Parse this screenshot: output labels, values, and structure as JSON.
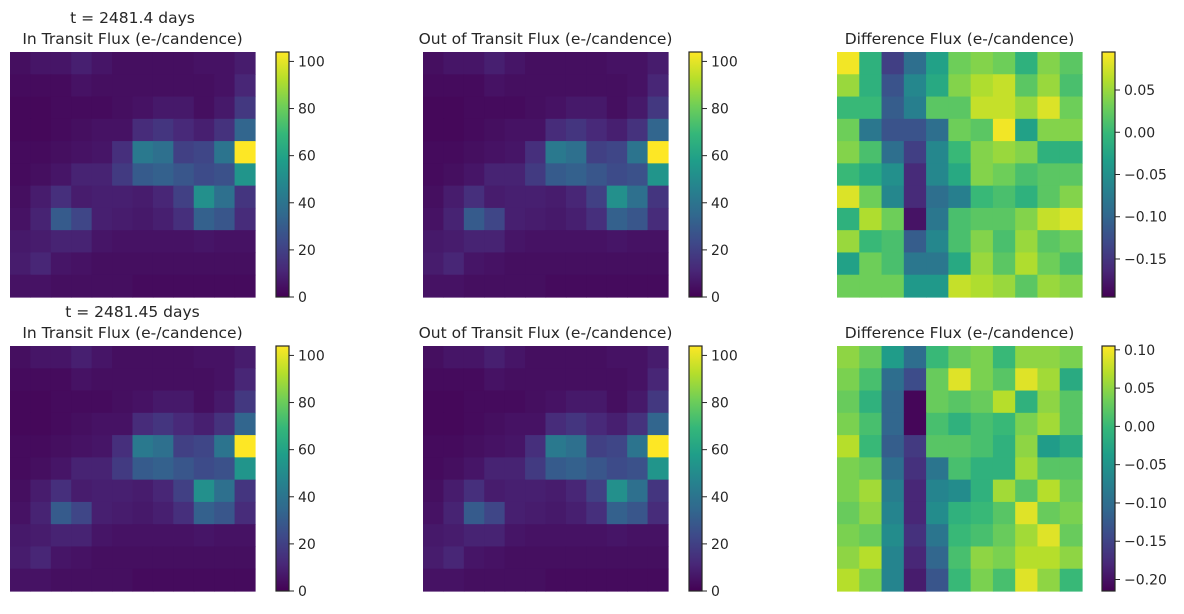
{
  "figure": {
    "colormap": "viridis",
    "colormap_stops": [
      "#440154",
      "#482878",
      "#3e4989",
      "#31688e",
      "#26828e",
      "#1f9e89",
      "#35b779",
      "#6ece58",
      "#b5de2b",
      "#fde725"
    ]
  },
  "chart_data": [
    {
      "id": "row1-in",
      "type": "heatmap",
      "title_lines": [
        "t = 2481.4 days",
        "In Transit Flux (e-/candence)"
      ],
      "vmin": 0,
      "vmax": 104,
      "colorbar_ticks": [
        0,
        20,
        40,
        60,
        80,
        100
      ],
      "colorbar_tick_labels": [
        "0",
        "20",
        "40",
        "60",
        "80",
        "100"
      ],
      "grid": [
        [
          4,
          6,
          6,
          9,
          6,
          4,
          4,
          4,
          4,
          5,
          5,
          8
        ],
        [
          3,
          3,
          3,
          5,
          4,
          4,
          4,
          4,
          4,
          4,
          5,
          11
        ],
        [
          2,
          2,
          3,
          3,
          3,
          4,
          5,
          7,
          7,
          4,
          7,
          17
        ],
        [
          2,
          2,
          3,
          4,
          5,
          5,
          13,
          16,
          12,
          9,
          15,
          34
        ],
        [
          3,
          3,
          4,
          5,
          6,
          14,
          42,
          38,
          20,
          22,
          40,
          104
        ],
        [
          3,
          4,
          6,
          10,
          10,
          18,
          30,
          32,
          28,
          24,
          26,
          54
        ],
        [
          4,
          8,
          14,
          8,
          9,
          9,
          8,
          11,
          20,
          52,
          38,
          16
        ],
        [
          5,
          10,
          30,
          22,
          9,
          8,
          7,
          9,
          14,
          32,
          28,
          13
        ],
        [
          7,
          8,
          10,
          10,
          6,
          5,
          5,
          5,
          5,
          6,
          5,
          5
        ],
        [
          8,
          11,
          6,
          5,
          4,
          4,
          4,
          4,
          4,
          4,
          4,
          4
        ],
        [
          5,
          5,
          4,
          4,
          4,
          4,
          3,
          3,
          3,
          3,
          3,
          3
        ]
      ]
    },
    {
      "id": "row1-out",
      "type": "heatmap",
      "title_lines": [
        "Out of Transit Flux (e-/candence)"
      ],
      "vmin": 0,
      "vmax": 104,
      "colorbar_ticks": [
        0,
        20,
        40,
        60,
        80,
        100
      ],
      "colorbar_tick_labels": [
        "0",
        "20",
        "40",
        "60",
        "80",
        "100"
      ],
      "grid": [
        [
          4,
          6,
          6,
          9,
          6,
          4,
          4,
          4,
          4,
          5,
          5,
          8
        ],
        [
          3,
          3,
          3,
          5,
          4,
          4,
          4,
          4,
          4,
          4,
          5,
          11
        ],
        [
          2,
          2,
          3,
          3,
          3,
          4,
          5,
          7,
          7,
          4,
          7,
          17
        ],
        [
          2,
          2,
          3,
          4,
          5,
          5,
          13,
          16,
          12,
          9,
          15,
          34
        ],
        [
          3,
          3,
          4,
          5,
          6,
          14,
          42,
          38,
          20,
          22,
          40,
          104
        ],
        [
          3,
          4,
          6,
          10,
          10,
          18,
          30,
          32,
          28,
          24,
          26,
          54
        ],
        [
          4,
          8,
          14,
          8,
          9,
          9,
          8,
          11,
          20,
          52,
          38,
          16
        ],
        [
          5,
          10,
          30,
          22,
          9,
          8,
          7,
          9,
          14,
          32,
          28,
          13
        ],
        [
          7,
          8,
          10,
          10,
          6,
          5,
          5,
          5,
          5,
          6,
          5,
          5
        ],
        [
          8,
          11,
          6,
          5,
          4,
          4,
          4,
          4,
          4,
          4,
          4,
          4
        ],
        [
          5,
          5,
          4,
          4,
          4,
          4,
          3,
          3,
          3,
          3,
          3,
          3
        ]
      ]
    },
    {
      "id": "row1-diff",
      "type": "heatmap",
      "title_lines": [
        "Difference Flux (e-/candence)"
      ],
      "vmin": -0.195,
      "vmax": 0.095,
      "colorbar_ticks": [
        0.05,
        0.0,
        -0.05,
        -0.1,
        -0.15
      ],
      "colorbar_tick_labels": [
        "0.05",
        "0.00",
        "−0.05",
        "−0.10",
        "−0.15"
      ],
      "grid": [
        [
          0.09,
          -0.01,
          -0.14,
          -0.09,
          -0.03,
          0.03,
          0.04,
          0.03,
          -0.01,
          0.04,
          0.02
        ],
        [
          0.05,
          -0.01,
          -0.12,
          -0.06,
          -0.02,
          0.04,
          0.06,
          0.07,
          0.02,
          0.05,
          0.01
        ],
        [
          0.0,
          0.0,
          -0.11,
          -0.07,
          0.02,
          0.02,
          0.07,
          0.07,
          0.05,
          0.08,
          0.03
        ],
        [
          0.03,
          -0.08,
          -0.12,
          -0.12,
          -0.09,
          0.03,
          0.02,
          0.09,
          -0.03,
          0.04,
          0.04
        ],
        [
          0.04,
          0.01,
          -0.09,
          -0.14,
          -0.06,
          0.0,
          0.04,
          0.05,
          0.04,
          -0.01,
          -0.01
        ],
        [
          0.0,
          -0.02,
          -0.05,
          -0.16,
          -0.06,
          -0.02,
          0.04,
          0.03,
          0.01,
          0.02,
          0.02
        ],
        [
          0.08,
          0.03,
          -0.06,
          -0.16,
          -0.09,
          -0.07,
          0.0,
          0.01,
          -0.01,
          0.02,
          0.04
        ],
        [
          -0.01,
          0.06,
          0.03,
          -0.18,
          -0.08,
          0.01,
          0.02,
          0.02,
          0.04,
          0.07,
          0.08
        ],
        [
          0.05,
          0.0,
          0.01,
          -0.11,
          -0.06,
          0.01,
          0.04,
          0.01,
          0.05,
          0.02,
          0.03
        ],
        [
          -0.03,
          0.03,
          0.01,
          -0.08,
          -0.08,
          -0.02,
          0.05,
          0.02,
          0.06,
          0.03,
          0.01
        ],
        [
          0.03,
          0.03,
          0.03,
          -0.04,
          -0.04,
          0.07,
          0.06,
          0.05,
          0.02,
          0.05,
          0.04
        ]
      ]
    },
    {
      "id": "row2-in",
      "type": "heatmap",
      "title_lines": [
        "t = 2481.45 days",
        "In Transit Flux (e-/candence)"
      ],
      "vmin": 0,
      "vmax": 104,
      "colorbar_ticks": [
        0,
        20,
        40,
        60,
        80,
        100
      ],
      "colorbar_tick_labels": [
        "0",
        "20",
        "40",
        "60",
        "80",
        "100"
      ],
      "grid": [
        [
          4,
          6,
          6,
          9,
          6,
          4,
          4,
          4,
          4,
          5,
          5,
          8
        ],
        [
          3,
          3,
          3,
          5,
          4,
          4,
          4,
          4,
          4,
          4,
          5,
          11
        ],
        [
          2,
          2,
          3,
          3,
          3,
          4,
          5,
          7,
          7,
          4,
          7,
          17
        ],
        [
          2,
          2,
          3,
          4,
          5,
          5,
          13,
          16,
          12,
          9,
          15,
          34
        ],
        [
          3,
          3,
          4,
          5,
          6,
          14,
          42,
          38,
          20,
          22,
          40,
          104
        ],
        [
          3,
          4,
          6,
          10,
          10,
          18,
          30,
          32,
          28,
          24,
          26,
          54
        ],
        [
          4,
          8,
          14,
          8,
          9,
          9,
          8,
          11,
          20,
          52,
          38,
          16
        ],
        [
          5,
          10,
          30,
          22,
          9,
          8,
          7,
          9,
          14,
          32,
          28,
          13
        ],
        [
          7,
          8,
          10,
          10,
          6,
          5,
          5,
          5,
          5,
          6,
          5,
          5
        ],
        [
          8,
          11,
          6,
          5,
          4,
          4,
          4,
          4,
          4,
          4,
          4,
          4
        ],
        [
          5,
          5,
          4,
          4,
          4,
          4,
          3,
          3,
          3,
          3,
          3,
          3
        ]
      ]
    },
    {
      "id": "row2-out",
      "type": "heatmap",
      "title_lines": [
        "Out of Transit Flux (e-/candence)"
      ],
      "vmin": 0,
      "vmax": 104,
      "colorbar_ticks": [
        0,
        20,
        40,
        60,
        80,
        100
      ],
      "colorbar_tick_labels": [
        "0",
        "20",
        "40",
        "60",
        "80",
        "100"
      ],
      "grid": [
        [
          4,
          6,
          6,
          9,
          6,
          4,
          4,
          4,
          4,
          5,
          5,
          8
        ],
        [
          3,
          3,
          3,
          5,
          4,
          4,
          4,
          4,
          4,
          4,
          5,
          11
        ],
        [
          2,
          2,
          3,
          3,
          3,
          4,
          5,
          7,
          7,
          4,
          7,
          17
        ],
        [
          2,
          2,
          3,
          4,
          5,
          5,
          13,
          16,
          12,
          9,
          15,
          34
        ],
        [
          3,
          3,
          4,
          5,
          6,
          14,
          42,
          38,
          20,
          22,
          40,
          104
        ],
        [
          3,
          4,
          6,
          10,
          10,
          18,
          30,
          32,
          28,
          24,
          26,
          54
        ],
        [
          4,
          8,
          14,
          8,
          9,
          9,
          8,
          11,
          20,
          52,
          38,
          16
        ],
        [
          5,
          10,
          30,
          22,
          9,
          8,
          7,
          9,
          14,
          32,
          28,
          13
        ],
        [
          7,
          8,
          10,
          10,
          6,
          5,
          5,
          5,
          5,
          6,
          5,
          5
        ],
        [
          8,
          11,
          6,
          5,
          4,
          4,
          4,
          4,
          4,
          4,
          4,
          4
        ],
        [
          5,
          5,
          4,
          4,
          4,
          4,
          3,
          3,
          3,
          3,
          3,
          3
        ]
      ]
    },
    {
      "id": "row2-diff",
      "type": "heatmap",
      "title_lines": [
        "Difference Flux (e-/candence)"
      ],
      "vmin": -0.215,
      "vmax": 0.105,
      "colorbar_ticks": [
        0.1,
        0.05,
        0.0,
        -0.05,
        -0.1,
        -0.15,
        -0.2
      ],
      "colorbar_tick_labels": [
        "0.10",
        "0.05",
        "0.00",
        "−0.05",
        "−0.10",
        "−0.15",
        "−0.20"
      ],
      "grid": [
        [
          0.05,
          0.03,
          -0.04,
          -0.1,
          0.0,
          0.03,
          0.04,
          0.0,
          0.05,
          0.05,
          0.04
        ],
        [
          0.04,
          0.01,
          -0.1,
          -0.14,
          0.03,
          0.09,
          0.04,
          0.02,
          0.09,
          0.06,
          -0.02
        ],
        [
          0.03,
          -0.01,
          -0.11,
          -0.21,
          0.03,
          0.02,
          0.03,
          0.07,
          -0.01,
          0.05,
          0.02
        ],
        [
          0.04,
          0.01,
          -0.11,
          -0.21,
          0.01,
          -0.01,
          0.01,
          0.0,
          0.04,
          0.06,
          0.02
        ],
        [
          0.07,
          0.0,
          -0.12,
          -0.16,
          0.02,
          0.02,
          0.01,
          -0.01,
          0.05,
          -0.04,
          -0.02
        ],
        [
          0.04,
          0.03,
          -0.1,
          -0.17,
          -0.09,
          0.01,
          -0.01,
          -0.01,
          0.06,
          0.02,
          0.02
        ],
        [
          0.04,
          0.06,
          -0.08,
          -0.18,
          -0.07,
          -0.06,
          -0.01,
          0.06,
          0.02,
          0.07,
          0.03
        ],
        [
          0.03,
          0.05,
          -0.07,
          -0.18,
          -0.06,
          -0.01,
          0.0,
          0.02,
          0.09,
          0.03,
          0.04
        ],
        [
          0.04,
          0.03,
          -0.06,
          -0.17,
          -0.09,
          0.0,
          0.01,
          0.03,
          0.06,
          0.09,
          0.03
        ],
        [
          0.05,
          0.07,
          -0.07,
          -0.18,
          -0.11,
          0.01,
          0.05,
          0.04,
          0.07,
          0.07,
          0.05
        ],
        [
          0.07,
          0.04,
          -0.07,
          -0.19,
          -0.13,
          0.0,
          0.04,
          0.01,
          0.09,
          0.05,
          0.0
        ]
      ]
    }
  ]
}
